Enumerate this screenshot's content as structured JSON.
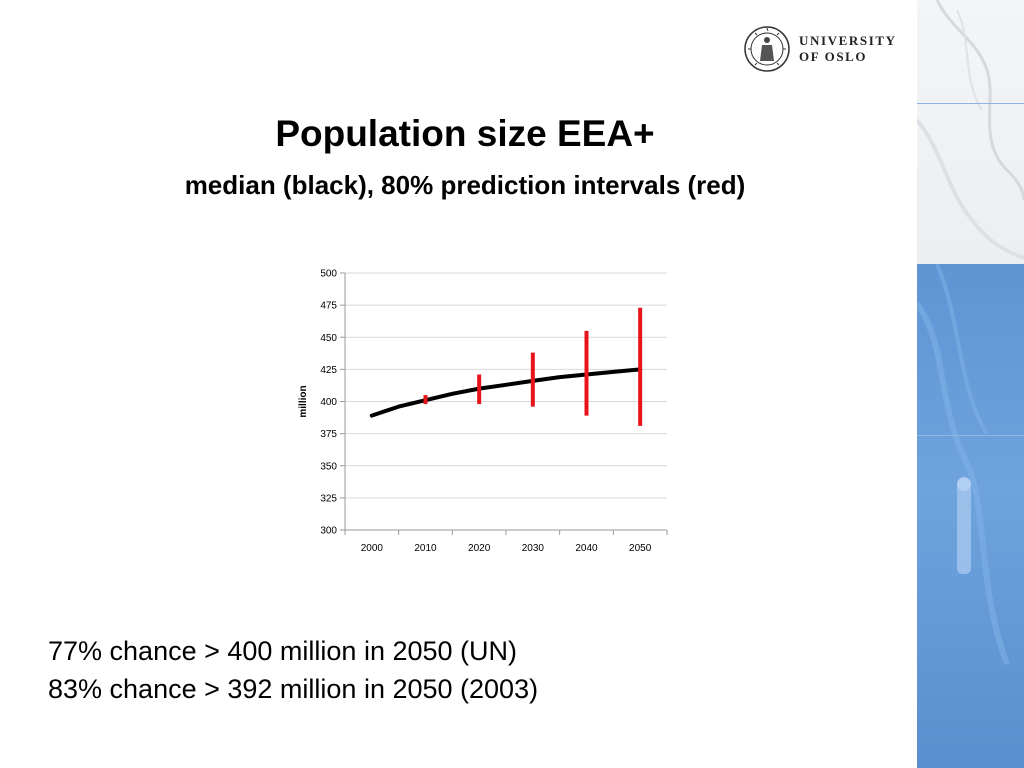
{
  "logo": {
    "line1": "UNIVERSITY",
    "line2": "OF OSLO",
    "seal_icon": "university-seal-icon"
  },
  "slide": {
    "title": "Population size EEA+",
    "subtitle": "median (black), 80% prediction intervals (red)"
  },
  "notes": [
    "77% chance > 400 million in 2050 (UN)",
    "83% chance > 392 million in 2050 (2003)"
  ],
  "colors": {
    "median": "#000000",
    "interval": "#e8141b",
    "grid": "#d9d9d9",
    "deco_blue": "#6ea3dd"
  },
  "chart_data": {
    "type": "line",
    "title": "Population size EEA+",
    "xlabel": "",
    "ylabel": "million",
    "x_ticks": [
      2000,
      2010,
      2020,
      2030,
      2040,
      2050
    ],
    "ylim": [
      300,
      500
    ],
    "y_ticks": [
      300,
      325,
      350,
      375,
      400,
      425,
      450,
      475,
      500
    ],
    "grid": true,
    "series": [
      {
        "x": [
          2000,
          2005,
          2010,
          2015,
          2020,
          2025,
          2030,
          2035,
          2040,
          2045,
          2050
        ],
        "values": [
          389,
          396,
          401,
          406,
          410,
          413,
          416,
          419,
          421,
          423,
          425
        ]
      }
    ],
    "intervals": [
      {
        "x": 2010,
        "low": 398,
        "high": 405
      },
      {
        "x": 2020,
        "low": 398,
        "high": 421
      },
      {
        "x": 2030,
        "low": 396,
        "high": 438
      },
      {
        "x": 2040,
        "low": 389,
        "high": 455
      },
      {
        "x": 2050,
        "low": 381,
        "high": 473
      }
    ]
  }
}
